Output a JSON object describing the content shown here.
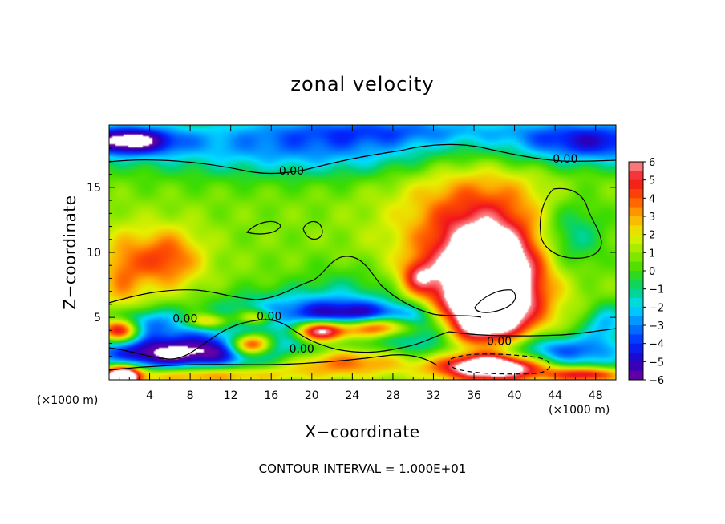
{
  "chart_data": {
    "type": "heatmap",
    "title": "zonal velocity",
    "xlabel": "X−coordinate",
    "ylabel": "Z−coordinate",
    "x_unit": "(×1000 m)",
    "y_unit": "(×1000 m)",
    "xlim": [
      0,
      50
    ],
    "ylim": [
      0.2,
      19.8
    ],
    "x_ticks": [
      4,
      8,
      12,
      16,
      20,
      24,
      28,
      32,
      36,
      40,
      44,
      48
    ],
    "y_ticks": [
      5,
      10,
      15
    ],
    "colorbar": {
      "min": -6,
      "max": 6,
      "ticks": [
        6,
        5,
        4,
        3,
        2,
        1,
        0,
        -1,
        -2,
        -3,
        -4,
        -5,
        -6
      ],
      "tick_labels": [
        "6",
        "5",
        "4",
        "3",
        "2",
        "1",
        "0",
        "−1",
        "−2",
        "−3",
        "−4",
        "−5",
        "−6"
      ],
      "over_color": "#ffffff",
      "under_color": "#ffffff"
    },
    "contour_interval_label": "CONTOUR INTERVAL = 1.000E+01",
    "contour_labels": [
      {
        "text": "0.00",
        "x": 18,
        "z": 16.3
      },
      {
        "text": "0.00",
        "x": 45,
        "z": 17.2
      },
      {
        "text": "0.00",
        "x": 7.5,
        "z": 4.9
      },
      {
        "text": "0.00",
        "x": 15.8,
        "z": 5.1
      },
      {
        "text": "0.00",
        "x": 19,
        "z": 2.6
      },
      {
        "text": "0.00",
        "x": 38.5,
        "z": 3.2
      }
    ],
    "features": [
      {
        "kind": "min",
        "x": 1.5,
        "z": 18.6,
        "value": -6.2,
        "sx": 3.5,
        "sz": 0.8
      },
      {
        "kind": "min",
        "x": 20,
        "z": 18.2,
        "value": -3.8,
        "sx": 14,
        "sz": 1.6
      },
      {
        "kind": "min",
        "x": 48,
        "z": 18.5,
        "value": -4.8,
        "sx": 6,
        "sz": 1.2
      },
      {
        "kind": "min",
        "x": 30,
        "z": 19.5,
        "value": -2.2,
        "sx": 10,
        "sz": 0.8
      },
      {
        "kind": "max",
        "x": 37.5,
        "z": 7,
        "value": 8.5,
        "sx": 3.5,
        "sz": 3.2
      },
      {
        "kind": "max",
        "x": 36,
        "z": 11.5,
        "value": 3.5,
        "sx": 5.5,
        "sz": 4.5
      },
      {
        "kind": "max",
        "x": 36,
        "z": 4.5,
        "value": 3.0,
        "sx": 2.5,
        "sz": 1.2
      },
      {
        "kind": "max",
        "x": 5.5,
        "z": 9.5,
        "value": 3.6,
        "sx": 2.6,
        "sz": 1.7
      },
      {
        "kind": "max",
        "x": 1.2,
        "z": 8,
        "value": 2.2,
        "sx": 1.5,
        "sz": 2.5
      },
      {
        "kind": "min",
        "x": 45.5,
        "z": 11.3,
        "value": -2.6,
        "sx": 2.4,
        "sz": 2.0
      },
      {
        "kind": "min",
        "x": 3.5,
        "z": 4.6,
        "value": -3.5,
        "sx": 3.5,
        "sz": 0.8
      },
      {
        "kind": "max",
        "x": 1,
        "z": 4,
        "value": 6.5,
        "sx": 1.4,
        "sz": 0.6
      },
      {
        "kind": "min",
        "x": 4,
        "z": 2.2,
        "value": -5,
        "sx": 5,
        "sz": 1.0
      },
      {
        "kind": "min",
        "x": 13,
        "z": 2.4,
        "value": -5.2,
        "sx": 6,
        "sz": 1.2
      },
      {
        "kind": "max",
        "x": 9,
        "z": 0.6,
        "value": 4,
        "sx": 6,
        "sz": 0.5
      },
      {
        "kind": "max",
        "x": 1.3,
        "z": 0.5,
        "value": 9,
        "sx": 1.2,
        "sz": 0.6
      },
      {
        "kind": "max",
        "x": 14,
        "z": 2.9,
        "value": 8,
        "sx": 1.5,
        "sz": 0.6
      },
      {
        "kind": "max",
        "x": 21,
        "z": 4.0,
        "value": 9,
        "sx": 2.0,
        "sz": 0.6
      },
      {
        "kind": "max",
        "x": 26.5,
        "z": 4.3,
        "value": 9,
        "sx": 2.5,
        "sz": 0.6
      },
      {
        "kind": "max",
        "x": 22,
        "z": 1.6,
        "value": 4,
        "sx": 6,
        "sz": 0.8
      },
      {
        "kind": "min",
        "x": 25,
        "z": 4.8,
        "value": -6.5,
        "sx": 5,
        "sz": 0.9
      },
      {
        "kind": "min",
        "x": 32,
        "z": 3.2,
        "value": -3.2,
        "sx": 4,
        "sz": 1.5
      },
      {
        "kind": "max",
        "x": 38,
        "z": 1.2,
        "value": 8,
        "sx": 4,
        "sz": 0.7
      },
      {
        "kind": "min",
        "x": 44,
        "z": 2.3,
        "value": -5,
        "sx": 5,
        "sz": 1.0
      },
      {
        "kind": "max",
        "x": 47,
        "z": 0.6,
        "value": 5,
        "sx": 2.5,
        "sz": 0.4
      },
      {
        "kind": "min",
        "x": 17,
        "z": 5.8,
        "value": -2.2,
        "sx": 5,
        "sz": 1.0
      },
      {
        "kind": "min",
        "x": 24,
        "z": 6.8,
        "value": -1.6,
        "sx": 4,
        "sz": 1.6
      },
      {
        "kind": "max",
        "x": 30.5,
        "z": 8.1,
        "value": 3,
        "sx": 1.2,
        "sz": 0.9
      },
      {
        "kind": "max",
        "x": 9.5,
        "z": 4.7,
        "value": 3.5,
        "sx": 1.5,
        "sz": 0.4
      },
      {
        "kind": "max",
        "x": 14.5,
        "z": 5.0,
        "value": 3.5,
        "sx": 1.2,
        "sz": 0.4
      },
      {
        "kind": "min",
        "x": 49,
        "z": 4.6,
        "value": -3,
        "sx": 1.5,
        "sz": 1.0
      }
    ]
  }
}
